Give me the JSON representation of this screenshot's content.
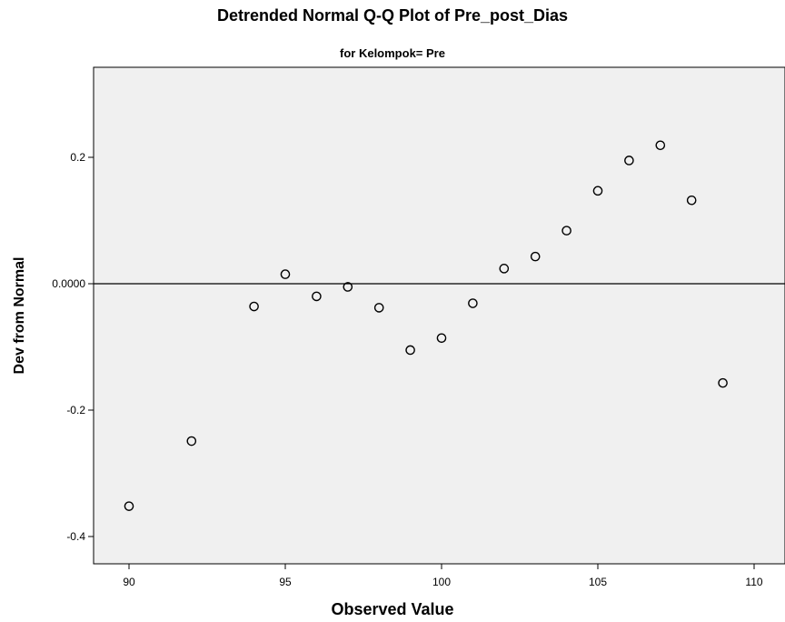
{
  "chart_data": {
    "type": "scatter",
    "title": "Detrended Normal Q-Q Plot of Pre_post_Dias",
    "subtitle": "for Kelompok= Pre",
    "xlabel": "Observed Value",
    "ylabel": "Dev from Normal",
    "xlim": [
      89,
      110.5
    ],
    "ylim": [
      -0.44,
      0.34
    ],
    "xticks": [
      90,
      95,
      100,
      105,
      110
    ],
    "xtick_labels": [
      "90",
      "95",
      "100",
      "105",
      "110"
    ],
    "yticks": [
      0.2,
      0.0,
      -0.2,
      -0.4
    ],
    "ytick_labels": [
      "0.2",
      "0.0000",
      "-0.2",
      "-0.4"
    ],
    "reference_line_y": 0,
    "background": "#f0f0f0",
    "grid": false,
    "points": [
      {
        "x": 90,
        "y": -0.352
      },
      {
        "x": 92,
        "y": -0.249
      },
      {
        "x": 94,
        "y": -0.036
      },
      {
        "x": 95,
        "y": 0.015
      },
      {
        "x": 96,
        "y": -0.02
      },
      {
        "x": 97,
        "y": -0.005
      },
      {
        "x": 98,
        "y": -0.038
      },
      {
        "x": 99,
        "y": -0.105
      },
      {
        "x": 100,
        "y": -0.086
      },
      {
        "x": 101,
        "y": -0.031
      },
      {
        "x": 102,
        "y": 0.024
      },
      {
        "x": 103,
        "y": 0.043
      },
      {
        "x": 104,
        "y": 0.084
      },
      {
        "x": 105,
        "y": 0.147
      },
      {
        "x": 106,
        "y": 0.195
      },
      {
        "x": 107,
        "y": 0.219
      },
      {
        "x": 108,
        "y": 0.132
      },
      {
        "x": 109,
        "y": -0.157
      }
    ]
  }
}
